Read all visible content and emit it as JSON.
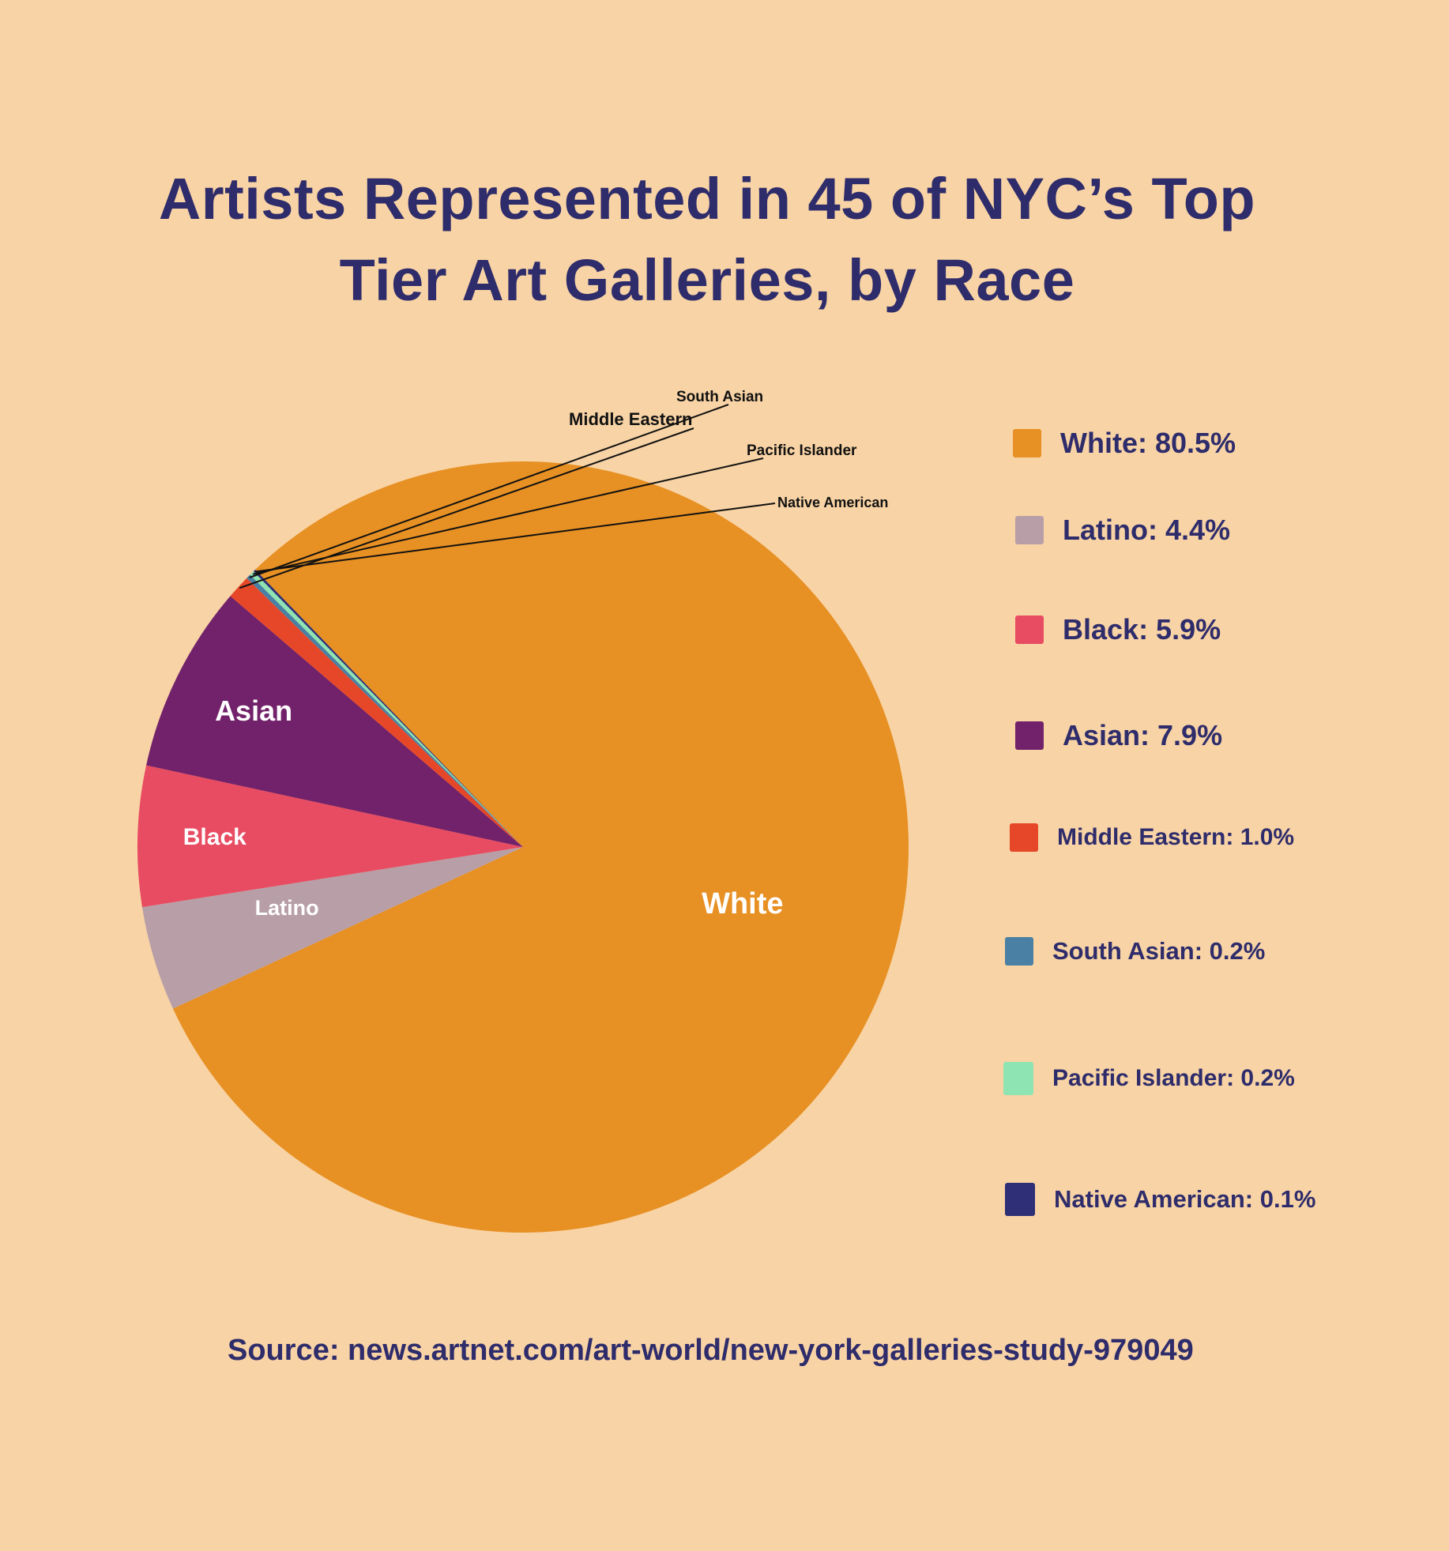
{
  "colors": {
    "background": "#f8d3a5",
    "title": "#2e2c6b",
    "slice_label": "#ffffff",
    "callout_label": "#111111",
    "leader_line": "#111111"
  },
  "chart_data": {
    "type": "pie",
    "title": "Artists Represented in 45 of NYC’s Top Tier Art Galleries, by Race",
    "title_lines": [
      "Artists Represented in 45 of NYC’s Top",
      "Tier Art Galleries, by Race"
    ],
    "slices": [
      {
        "label": "White",
        "value": 80.5,
        "color": "#e79023",
        "legend": "White: 80.5%"
      },
      {
        "label": "Latino",
        "value": 4.4,
        "color": "#b89fa7",
        "legend": "Latino: 4.4%"
      },
      {
        "label": "Black",
        "value": 5.9,
        "color": "#e84c62",
        "legend": "Black: 5.9%"
      },
      {
        "label": "Asian",
        "value": 7.9,
        "color": "#72226a",
        "legend": "Asian: 7.9%"
      },
      {
        "label": "Middle Eastern",
        "value": 1.0,
        "color": "#e54728",
        "legend": "Middle Eastern: 1.0%"
      },
      {
        "label": "South Asian",
        "value": 0.2,
        "color": "#4a80a3",
        "legend": "South Asian: 0.2%"
      },
      {
        "label": "Pacific Islander",
        "value": 0.2,
        "color": "#8ee4b2",
        "legend": "Pacific Islander: 0.2%"
      },
      {
        "label": "Native American",
        "value": 0.1,
        "color": "#2e2f76",
        "legend": "Native American: 0.1%"
      }
    ],
    "legend_placement": "right",
    "source": "Source: news.artnet.com/art-world/new-york-galleries-study-979049"
  }
}
